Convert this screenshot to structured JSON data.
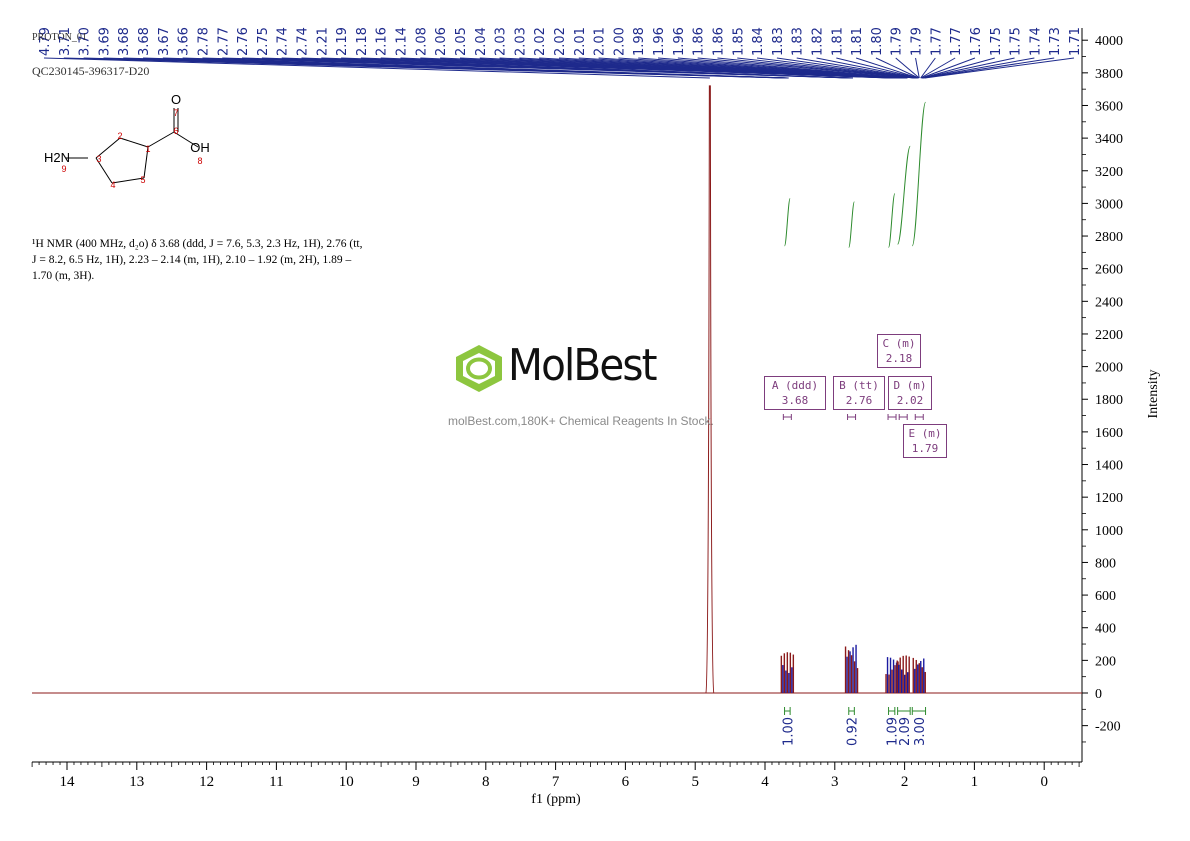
{
  "header": {
    "experiment": "PROTON_01",
    "sample_id": "QC230145-396317-D20"
  },
  "peak_labels": [
    "4.79",
    "3.71",
    "3.70",
    "3.69",
    "3.68",
    "3.68",
    "3.67",
    "3.66",
    "2.78",
    "2.77",
    "2.76",
    "2.75",
    "2.74",
    "2.74",
    "2.21",
    "2.19",
    "2.18",
    "2.16",
    "2.14",
    "2.08",
    "2.06",
    "2.05",
    "2.04",
    "2.03",
    "2.03",
    "2.02",
    "2.02",
    "2.01",
    "2.01",
    "2.00",
    "1.98",
    "1.96",
    "1.96",
    "1.86",
    "1.86",
    "1.85",
    "1.84",
    "1.83",
    "1.83",
    "1.82",
    "1.81",
    "1.81",
    "1.80",
    "1.79",
    "1.79",
    "1.77",
    "1.77",
    "1.76",
    "1.75",
    "1.75",
    "1.74",
    "1.73",
    "1.71"
  ],
  "structure": {
    "atoms": [
      "O",
      "7",
      "6",
      "OH",
      "8",
      "1",
      "2",
      "H2N",
      "3",
      "9",
      "4",
      "5"
    ]
  },
  "nmr_description": {
    "line1": "¹H NMR (400 MHz, d₂o) δ 3.68 (ddd, J = 7.6, 5.3, 2.3 Hz, 1H), 2.76 (tt,",
    "line2": "J = 8.2, 6.5 Hz, 1H), 2.23 – 2.14 (m, 1H), 2.10 – 1.92 (m, 2H), 1.89 –",
    "line3": "1.70 (m, 3H)."
  },
  "watermark": {
    "brand": "MolBest",
    "tagline": "molBest.com,180K+ Chemical Reagents In Stock."
  },
  "multiplets": [
    {
      "id": "A",
      "mult": "(ddd)",
      "shift": "3.68"
    },
    {
      "id": "B",
      "mult": "(tt)",
      "shift": "2.76"
    },
    {
      "id": "C",
      "mult": "(m)",
      "shift": "2.18"
    },
    {
      "id": "D",
      "mult": "(m)",
      "shift": "2.02"
    },
    {
      "id": "E",
      "mult": "(m)",
      "shift": "1.79"
    }
  ],
  "integrals": [
    {
      "value": "1.00",
      "from": 3.72,
      "to": 3.64
    },
    {
      "value": "0.92",
      "from": 2.8,
      "to": 2.72
    },
    {
      "value": "1.09",
      "from": 2.23,
      "to": 2.14
    },
    {
      "value": "2.09",
      "from": 2.1,
      "to": 1.92
    },
    {
      "value": "3.00",
      "from": 1.89,
      "to": 1.7
    }
  ],
  "chart_data": {
    "type": "line",
    "title": "",
    "xlabel": "f1 (ppm)",
    "ylabel": "Intensity",
    "xlim": [
      14.5,
      -0.5
    ],
    "ylim": [
      -400,
      4100
    ],
    "x_ticks": [
      "14",
      "13",
      "12",
      "11",
      "10",
      "9",
      "8",
      "7",
      "6",
      "5",
      "4",
      "3",
      "2",
      "1",
      "0"
    ],
    "y_ticks": [
      "4000",
      "3800",
      "3600",
      "3400",
      "3200",
      "3000",
      "2800",
      "2600",
      "2400",
      "2200",
      "2000",
      "1800",
      "1600",
      "1400",
      "1200",
      "1000",
      "800",
      "600",
      "400",
      "200",
      "0",
      "-200"
    ],
    "peaks": [
      {
        "ppm": 4.79,
        "intensity": 3720
      },
      {
        "ppm": 3.68,
        "intensity": 250
      },
      {
        "ppm": 2.76,
        "intensity": 300
      },
      {
        "ppm": 2.18,
        "intensity": 220
      },
      {
        "ppm": 2.02,
        "intensity": 230
      },
      {
        "ppm": 1.79,
        "intensity": 220
      }
    ],
    "integral_curves": [
      {
        "from": 3.72,
        "to": 3.64,
        "y_start": 2740,
        "y_end": 3030
      },
      {
        "from": 2.8,
        "to": 2.72,
        "y_start": 2730,
        "y_end": 3010
      },
      {
        "from": 2.23,
        "to": 2.14,
        "y_start": 2730,
        "y_end": 3060
      },
      {
        "from": 2.1,
        "to": 1.92,
        "y_start": 2750,
        "y_end": 3350
      },
      {
        "from": 1.89,
        "to": 1.7,
        "y_start": 2740,
        "y_end": 3620
      }
    ],
    "colors": {
      "spectrum": "#8b1a1a",
      "fill": "#1a1aa0",
      "integral": "#2e8b2e",
      "labels": "#1e2a8c",
      "boxes": "#7d3d7d"
    }
  }
}
